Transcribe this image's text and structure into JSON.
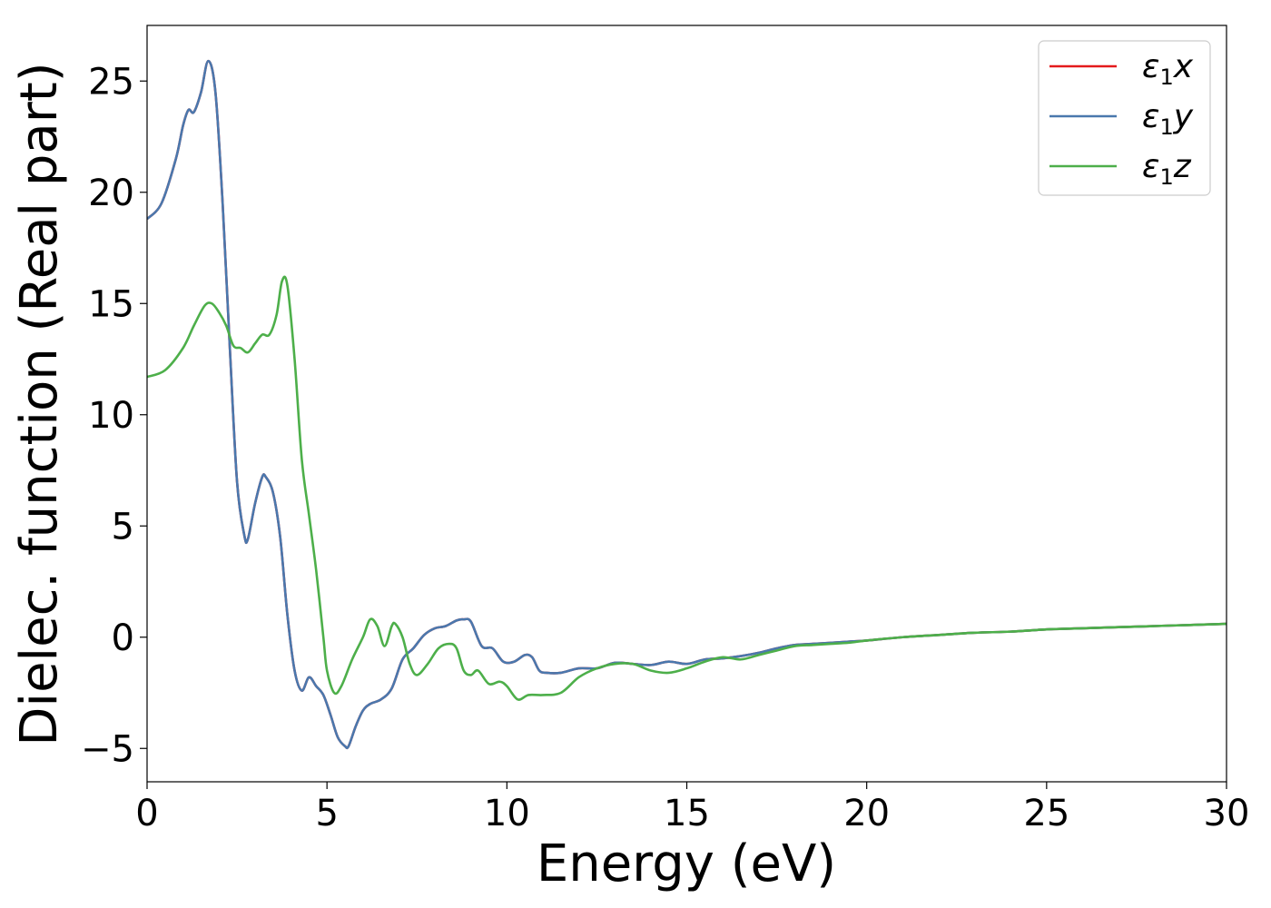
{
  "chart_data": {
    "type": "line",
    "xlabel": "Energy (eV)",
    "ylabel": "Dielec. function (Real part)",
    "xlim": [
      0,
      30
    ],
    "ylim": [
      -6.5,
      27.5
    ],
    "xticks": [
      0,
      5,
      10,
      15,
      20,
      25,
      30
    ],
    "yticks": [
      -5,
      0,
      5,
      10,
      15,
      20,
      25
    ],
    "grid": false,
    "legend_position": "top-right",
    "series": [
      {
        "name": "ε1x",
        "name_parts": {
          "base": "ε",
          "sub": "1",
          "axis": "x"
        },
        "color": "#e41a1c",
        "x": [
          0,
          0.4,
          0.8,
          1.0,
          1.15,
          1.3,
          1.5,
          1.7,
          1.9,
          2.1,
          2.3,
          2.5,
          2.7,
          2.8,
          3.0,
          3.2,
          3.3,
          3.5,
          3.7,
          3.9,
          4.1,
          4.3,
          4.5,
          4.7,
          4.9,
          5.1,
          5.3,
          5.5,
          5.6,
          5.8,
          6.0,
          6.2,
          6.5,
          6.8,
          7.1,
          7.4,
          7.7,
          8.0,
          8.3,
          8.6,
          8.8,
          9.0,
          9.3,
          9.6,
          9.9,
          10.2,
          10.5,
          10.7,
          10.9,
          11.1,
          11.5,
          12.0,
          12.5,
          13.0,
          13.5,
          14.0,
          14.5,
          15.0,
          15.5,
          16.0,
          16.5,
          17.0,
          17.5,
          18.0,
          18.5,
          19.0,
          19.5,
          20.0,
          21.0,
          22.0,
          23.0,
          24.0,
          25.0,
          26.0,
          27.0,
          28.0,
          29.0,
          30.0
        ],
        "y": [
          18.8,
          19.5,
          21.5,
          23.0,
          23.7,
          23.6,
          24.5,
          25.9,
          24.5,
          19.5,
          13.0,
          7.0,
          4.6,
          4.4,
          6.0,
          7.2,
          7.2,
          6.5,
          4.5,
          1.0,
          -1.5,
          -2.4,
          -1.8,
          -2.2,
          -2.6,
          -3.5,
          -4.5,
          -4.9,
          -4.9,
          -4.0,
          -3.3,
          -3.0,
          -2.8,
          -2.3,
          -1.0,
          -0.5,
          0.1,
          0.4,
          0.5,
          0.75,
          0.8,
          0.7,
          -0.4,
          -0.5,
          -1.1,
          -1.1,
          -0.8,
          -0.9,
          -1.5,
          -1.6,
          -1.6,
          -1.4,
          -1.4,
          -1.15,
          -1.2,
          -1.25,
          -1.1,
          -1.2,
          -1.0,
          -0.95,
          -0.85,
          -0.7,
          -0.5,
          -0.35,
          -0.3,
          -0.25,
          -0.2,
          -0.15,
          0.0,
          0.1,
          0.2,
          0.25,
          0.35,
          0.4,
          0.45,
          0.5,
          0.55,
          0.6
        ]
      },
      {
        "name": "ε1y",
        "name_parts": {
          "base": "ε",
          "sub": "1",
          "axis": "y"
        },
        "color": "#4a78ad",
        "x": [
          0,
          0.4,
          0.8,
          1.0,
          1.15,
          1.3,
          1.5,
          1.7,
          1.9,
          2.1,
          2.3,
          2.5,
          2.7,
          2.8,
          3.0,
          3.2,
          3.3,
          3.5,
          3.7,
          3.9,
          4.1,
          4.3,
          4.5,
          4.7,
          4.9,
          5.1,
          5.3,
          5.5,
          5.6,
          5.8,
          6.0,
          6.2,
          6.5,
          6.8,
          7.1,
          7.4,
          7.7,
          8.0,
          8.3,
          8.6,
          8.8,
          9.0,
          9.3,
          9.6,
          9.9,
          10.2,
          10.5,
          10.7,
          10.9,
          11.1,
          11.5,
          12.0,
          12.5,
          13.0,
          13.5,
          14.0,
          14.5,
          15.0,
          15.5,
          16.0,
          16.5,
          17.0,
          17.5,
          18.0,
          18.5,
          19.0,
          19.5,
          20.0,
          21.0,
          22.0,
          23.0,
          24.0,
          25.0,
          26.0,
          27.0,
          28.0,
          29.0,
          30.0
        ],
        "y": [
          18.8,
          19.5,
          21.5,
          23.0,
          23.7,
          23.6,
          24.5,
          25.9,
          24.5,
          19.5,
          13.0,
          7.0,
          4.6,
          4.4,
          6.0,
          7.2,
          7.2,
          6.5,
          4.5,
          1.0,
          -1.5,
          -2.4,
          -1.8,
          -2.2,
          -2.6,
          -3.5,
          -4.5,
          -4.9,
          -4.9,
          -4.0,
          -3.3,
          -3.0,
          -2.8,
          -2.3,
          -1.0,
          -0.5,
          0.1,
          0.4,
          0.5,
          0.75,
          0.8,
          0.7,
          -0.4,
          -0.5,
          -1.1,
          -1.1,
          -0.8,
          -0.9,
          -1.5,
          -1.6,
          -1.6,
          -1.4,
          -1.4,
          -1.15,
          -1.2,
          -1.25,
          -1.1,
          -1.2,
          -1.0,
          -0.95,
          -0.85,
          -0.7,
          -0.5,
          -0.35,
          -0.3,
          -0.25,
          -0.2,
          -0.15,
          0.0,
          0.1,
          0.2,
          0.25,
          0.35,
          0.4,
          0.45,
          0.5,
          0.55,
          0.6
        ]
      },
      {
        "name": "ε1z",
        "name_parts": {
          "base": "ε",
          "sub": "1",
          "axis": "z"
        },
        "color": "#4daf4a",
        "x": [
          0,
          0.5,
          1.0,
          1.3,
          1.6,
          1.8,
          2.0,
          2.2,
          2.4,
          2.6,
          2.8,
          3.0,
          3.2,
          3.4,
          3.6,
          3.75,
          3.9,
          4.1,
          4.3,
          4.5,
          4.7,
          4.9,
          5.0,
          5.2,
          5.4,
          5.7,
          6.0,
          6.2,
          6.4,
          6.6,
          6.8,
          6.9,
          7.1,
          7.3,
          7.5,
          7.8,
          8.1,
          8.4,
          8.6,
          8.8,
          9.0,
          9.2,
          9.5,
          9.8,
          10.0,
          10.3,
          10.6,
          11.0,
          11.5,
          12.0,
          12.5,
          13.0,
          13.5,
          14.0,
          14.5,
          15.0,
          15.5,
          16.0,
          16.5,
          17.0,
          17.5,
          18.0,
          18.5,
          19.0,
          19.5,
          20.0,
          21.0,
          22.0,
          23.0,
          24.0,
          25.0,
          26.0,
          27.0,
          28.0,
          29.0,
          30.0
        ],
        "y": [
          11.7,
          12.0,
          13.0,
          14.0,
          14.9,
          15.0,
          14.6,
          14.0,
          13.1,
          13.0,
          12.8,
          13.2,
          13.6,
          13.6,
          14.5,
          16.0,
          15.8,
          12.5,
          8.0,
          5.5,
          3.0,
          0.0,
          -1.5,
          -2.5,
          -2.2,
          -1.0,
          0.0,
          0.8,
          0.5,
          -0.4,
          0.5,
          0.6,
          0.0,
          -1.2,
          -1.7,
          -1.2,
          -0.5,
          -0.3,
          -0.5,
          -1.5,
          -1.7,
          -1.5,
          -2.1,
          -2.0,
          -2.2,
          -2.8,
          -2.6,
          -2.6,
          -2.5,
          -1.8,
          -1.4,
          -1.2,
          -1.2,
          -1.5,
          -1.6,
          -1.4,
          -1.1,
          -0.9,
          -1.0,
          -0.8,
          -0.6,
          -0.4,
          -0.35,
          -0.3,
          -0.25,
          -0.15,
          0.0,
          0.1,
          0.2,
          0.25,
          0.35,
          0.4,
          0.45,
          0.5,
          0.55,
          0.6
        ]
      }
    ]
  }
}
